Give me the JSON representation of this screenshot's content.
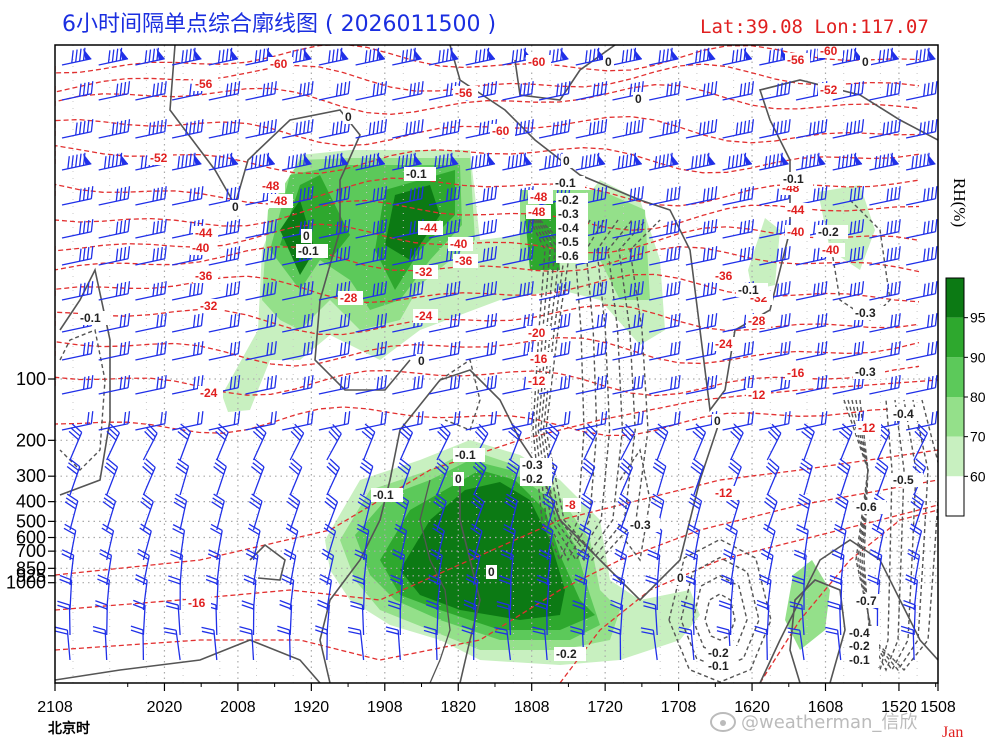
{
  "header": {
    "title": "6小时间隔单点综合廓线图 ( 2026011500 )",
    "latlon": "Lat:39.08  Lon:117.07"
  },
  "chart_data": {
    "type": "time-height cross section",
    "x_label": "北京时",
    "x_ticks": [
      "2108",
      "2020",
      "2008",
      "1920",
      "1908",
      "1820",
      "1808",
      "1720",
      "1708",
      "1620",
      "1608",
      "1520",
      "1508"
    ],
    "y_ticks": [
      "100",
      "200",
      "300",
      "400",
      "500",
      "600",
      "700",
      "850",
      "925",
      "1000"
    ],
    "y_scale": "log pressure (hPa), inverted",
    "month_label": "Jan",
    "colorbar": {
      "label": "RH(%)",
      "levels": [
        60,
        70,
        80,
        90,
        95
      ],
      "colors": [
        "#ffffff",
        "#c8f0c0",
        "#94e08a",
        "#5cc95a",
        "#2ea82e",
        "#0c7a14"
      ]
    },
    "temperature_contours_C": [
      -60,
      -56,
      -52,
      -48,
      -44,
      -40,
      -36,
      -32,
      -28,
      -24,
      -20,
      -16,
      -12,
      -8
    ],
    "temperature_labels": [
      "-60",
      "-56",
      "-52",
      "-48",
      "-44",
      "-40",
      "-36",
      "-32",
      "-28",
      "-24",
      "-20",
      "-16",
      "-12",
      "-8"
    ],
    "omega_labels": [
      "0",
      "-0.1",
      "-0.2",
      "-0.3",
      "-0.4",
      "-0.5",
      "-0.6",
      "-0.7"
    ],
    "grid": true
  },
  "watermark": "@weatherman_信欣",
  "icons": {
    "wind": "wind-barb-icon",
    "weibo": "weibo-icon"
  }
}
